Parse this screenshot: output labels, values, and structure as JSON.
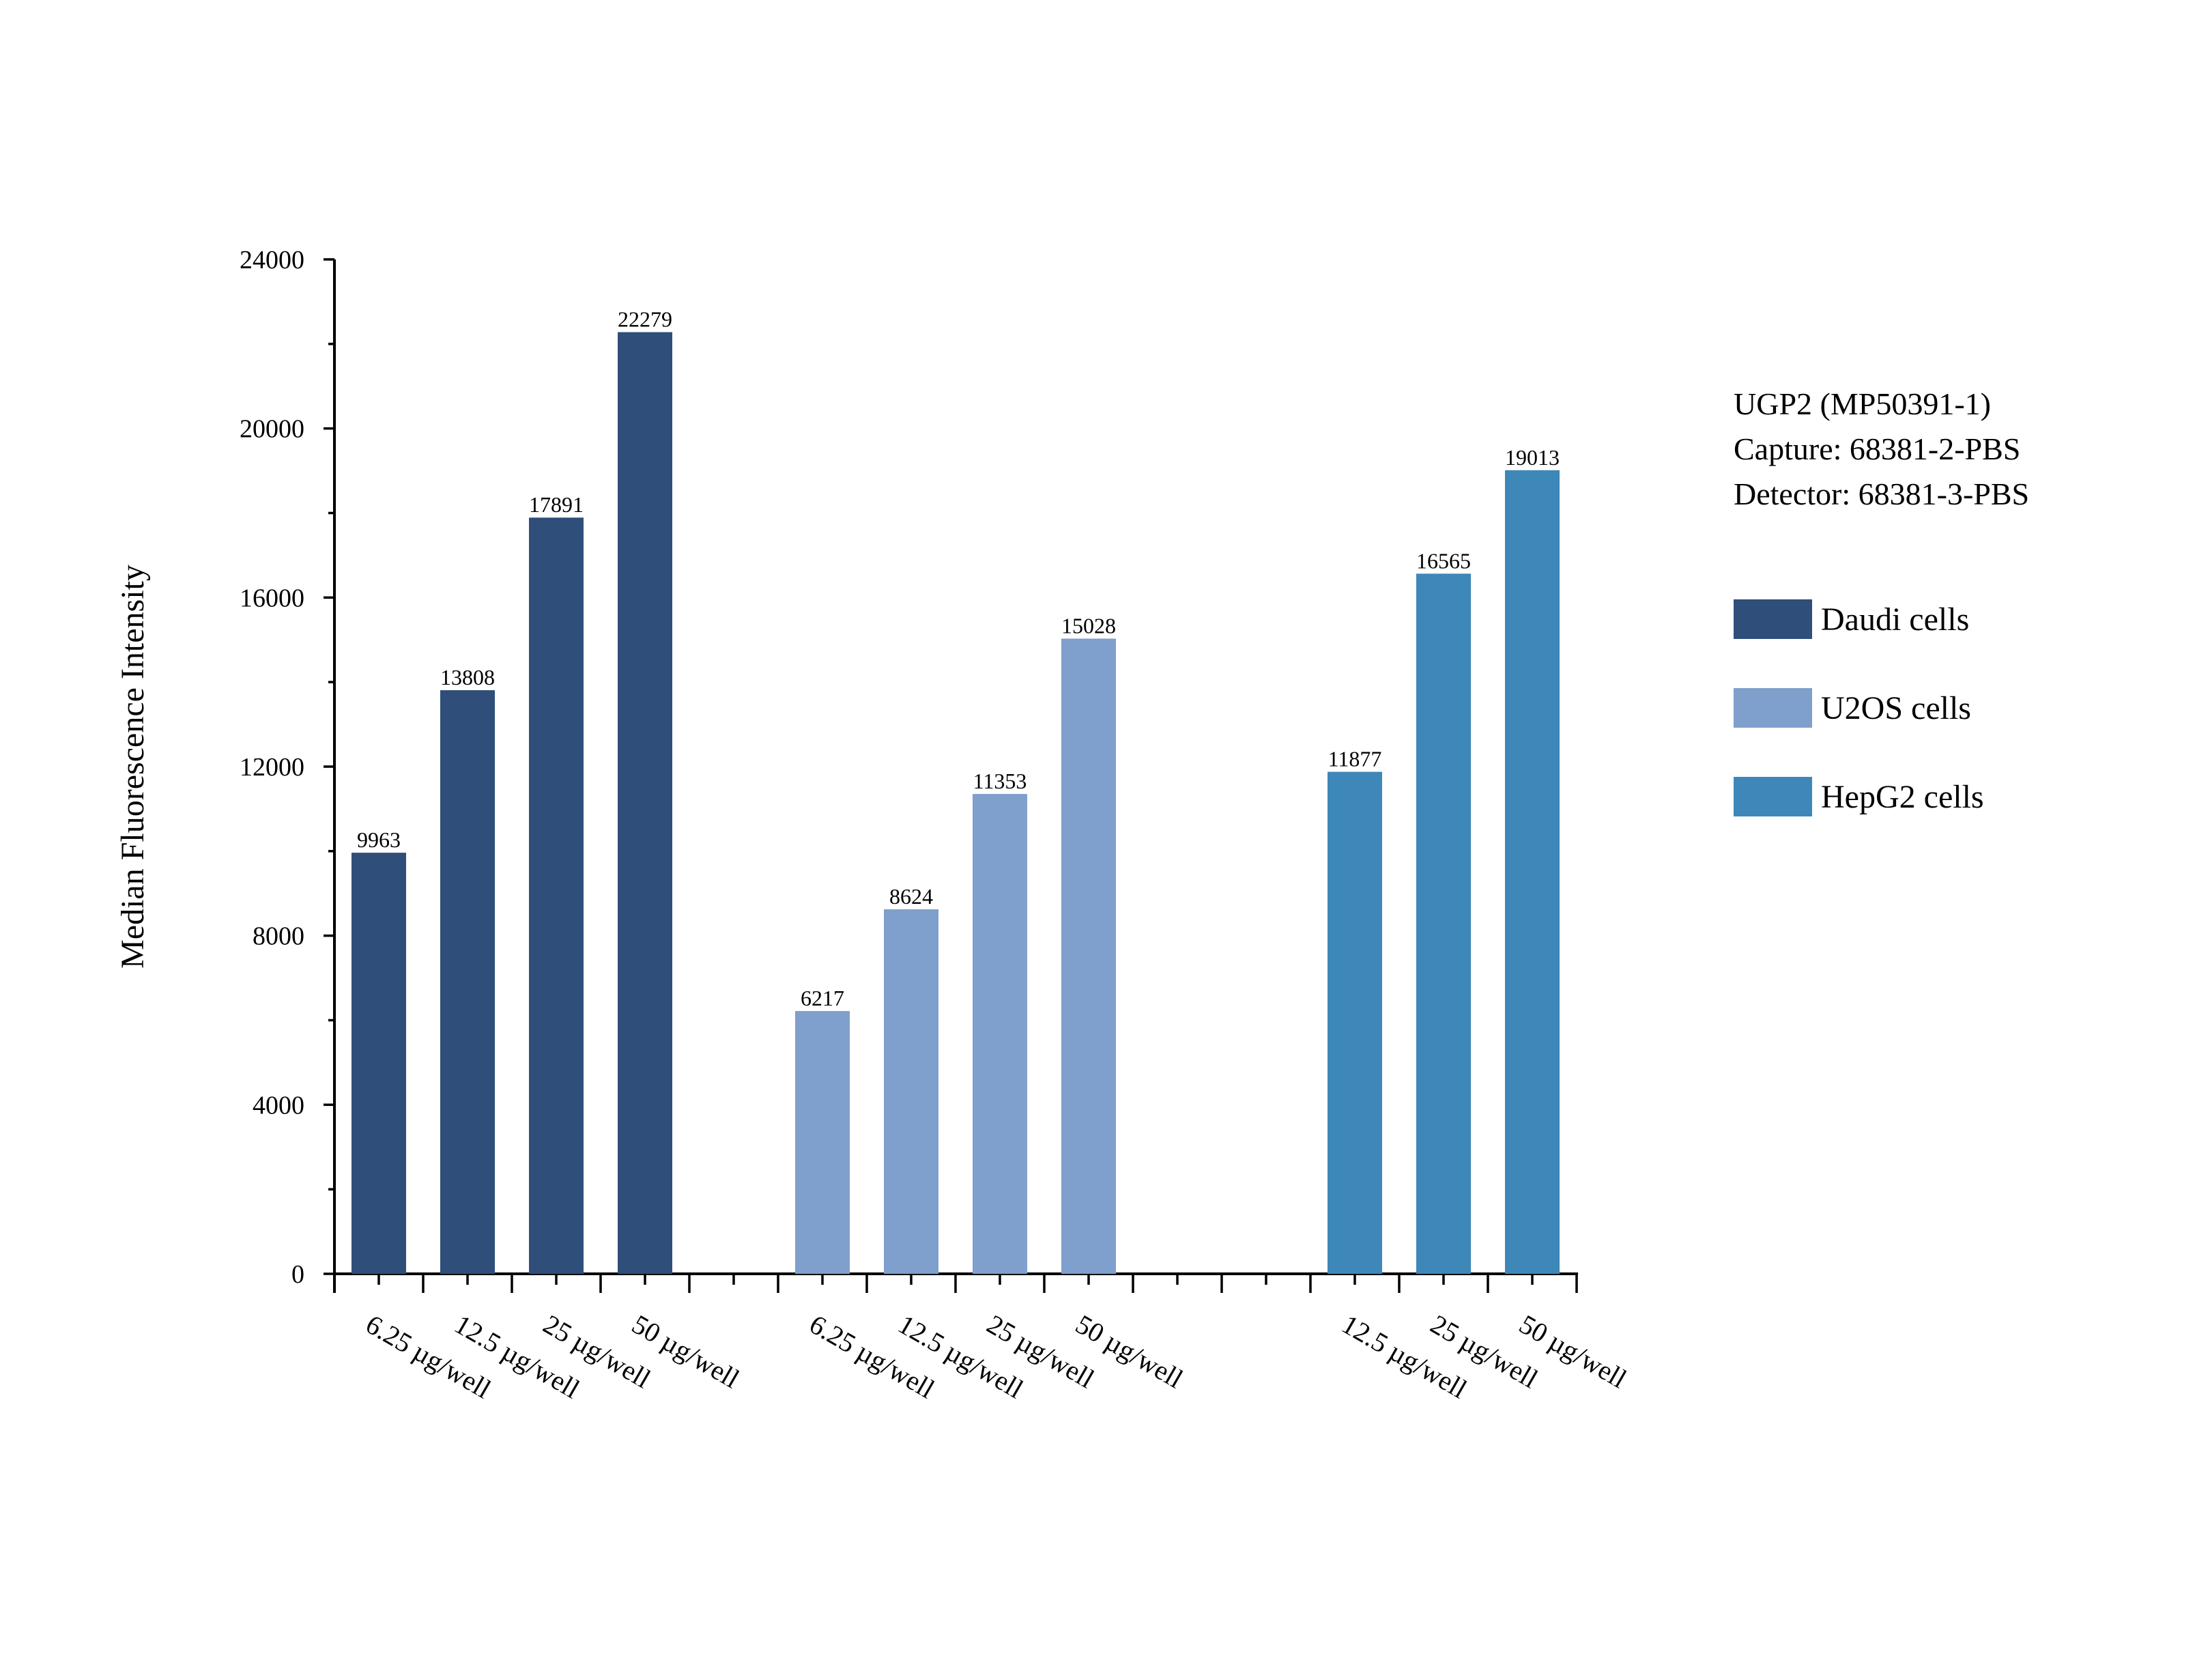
{
  "chart_data": {
    "type": "bar",
    "title": "",
    "xlabel": "",
    "ylabel": "Median Fluorescence Intensity",
    "ylim": [
      0,
      24000
    ],
    "y_ticks": [
      0,
      4000,
      8000,
      12000,
      16000,
      20000,
      24000
    ],
    "grid": false,
    "groups": [
      {
        "name": "Daudi cells",
        "color": "#2f4f7a",
        "categories": [
          "6.25 µg/well",
          "12.5 µg/well",
          "25 µg/well",
          "50 µg/well"
        ],
        "values": [
          9963,
          13808,
          17891,
          22279
        ]
      },
      {
        "name": "U2OS cells",
        "color": "#7f9fcc",
        "categories": [
          "6.25 µg/well",
          "12.5 µg/well",
          "25 µg/well",
          "50 µg/well"
        ],
        "values": [
          6217,
          8624,
          11353,
          15028
        ]
      },
      {
        "name": "HepG2 cells",
        "color": "#3d88b8",
        "categories": [
          "12.5 µg/well",
          "25 µg/well",
          "50 µg/well"
        ],
        "values": [
          11877,
          16565,
          19013
        ]
      }
    ],
    "legend_position": "right",
    "annotation_lines": [
      "UGP2 (MP50391-1)",
      "Capture: 68381-2-PBS",
      "Detector: 68381-3-PBS"
    ]
  }
}
